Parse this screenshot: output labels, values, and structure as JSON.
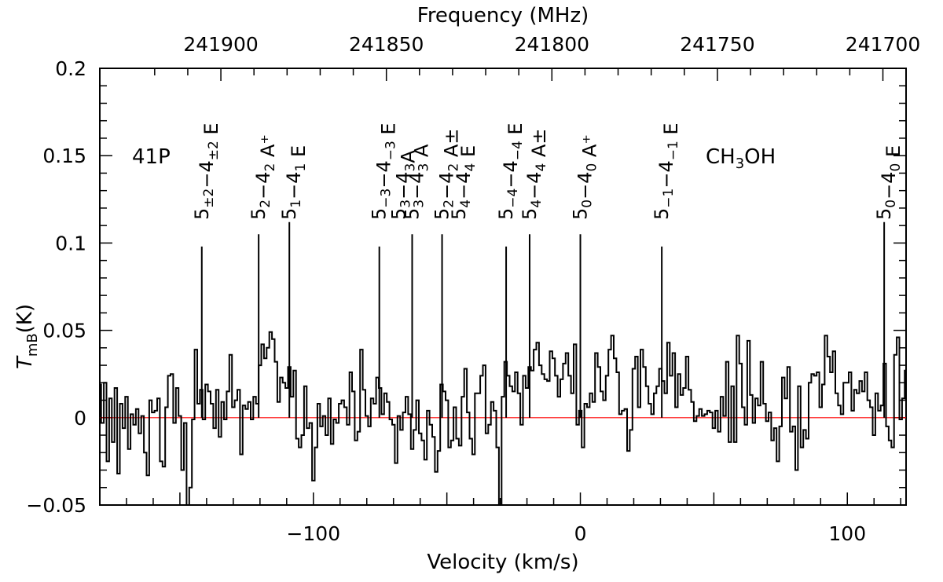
{
  "chart_data": {
    "type": "line",
    "style": "histogram-step",
    "annotations": {
      "object": "41P",
      "molecule": "CH3OH"
    },
    "x_axis": {
      "label": "Velocity (km/s)",
      "range": [
        -180,
        122
      ],
      "tick_values": [
        -100,
        0,
        100
      ],
      "tick_labels": [
        "−100",
        "0",
        "100"
      ]
    },
    "top_axis": {
      "label": "Frequency (MHz)",
      "tick_values": [
        241900,
        241850,
        241800,
        241750,
        241700
      ],
      "tick_labels": [
        "241900",
        "241850",
        "241800",
        "241750",
        "241700"
      ],
      "rest_frequency_mhz": 241791.4
    },
    "y_axis": {
      "label_main": "T",
      "label_sub": "mB",
      "label_unit": "(K)",
      "range": [
        -0.05,
        0.2
      ],
      "tick_values": [
        -0.05,
        0,
        0.05,
        0.1,
        0.15,
        0.2
      ],
      "tick_labels": [
        "−0.05",
        "0",
        "0.05",
        "0.1",
        "0.15",
        "0.2"
      ]
    },
    "baseline": {
      "value": 0,
      "color": "#ff0000"
    },
    "spectrum": {
      "x_start": -180,
      "x_step": 1,
      "values": [
        0.019,
        -0.003,
        0.02,
        -0.025,
        0.011,
        -0.014,
        0.017,
        -0.032,
        0.008,
        -0.006,
        0.012,
        -0.018,
        0.002,
        -0.004,
        0.005,
        -0.009,
        0.001,
        -0.02,
        -0.033,
        0.01,
        0.003,
        0.004,
        0.011,
        -0.025,
        -0.028,
        0.006,
        0.024,
        0.025,
        -0.003,
        0.017,
        0.001,
        -0.03,
        -0.003,
        -0.05,
        -0.04,
        -0.001,
        0.039,
        0.008,
        0.016,
        -0.001,
        0.019,
        0.015,
        0.008,
        -0.006,
        0.016,
        -0.011,
        0.009,
        -0.001,
        0.015,
        0.036,
        0.006,
        0.01,
        0.016,
        -0.021,
        0.007,
        0.005,
        0.009,
        -0.001,
        0.012,
        0.008,
        0.03,
        0.042,
        0.034,
        0.04,
        0.049,
        0.045,
        0.032,
        0.009,
        0.023,
        0.02,
        0.017,
        0.029,
        0.012,
        0.027,
        -0.012,
        -0.017,
        -0.01,
        0.018,
        -0.006,
        -0.003,
        -0.036,
        -0.017,
        0.008,
        -0.005,
        0.001,
        -0.01,
        0.011,
        -0.015,
        -0.001,
        -0.003,
        0.008,
        0.01,
        0.006,
        -0.004,
        0.026,
        0.015,
        -0.013,
        -0.008,
        0.039,
        0.016,
        0.001,
        -0.005,
        0.011,
        0.008,
        0.023,
        0.017,
        0.002,
        0.014,
        0.009,
        -0.001,
        -0.004,
        -0.026,
        0.001,
        -0.007,
        0.003,
        0.012,
        0.002,
        -0.018,
        -0.007,
        0.01,
        -0.009,
        -0.013,
        -0.024,
        0.004,
        -0.004,
        -0.011,
        -0.031,
        -0.019,
        0.019,
        0.015,
        0.01,
        -0.017,
        -0.013,
        0.006,
        -0.012,
        -0.016,
        0.012,
        0.028,
        0.003,
        -0.012,
        -0.021,
        0.014,
        0.014,
        0.024,
        0.03,
        -0.009,
        -0.004,
        0.009,
        0.004,
        -0.017,
        -0.05,
        0.012,
        0.032,
        0.024,
        0.018,
        0.015,
        0.026,
        0.014,
        -0.004,
        0.024,
        0.017,
        0.029,
        0.027,
        0.039,
        0.043,
        0.03,
        0.025,
        0.022,
        0.021,
        0.038,
        0.034,
        0.024,
        0.012,
        0.022,
        0.031,
        0.037,
        0.024,
        0.014,
        0.042,
        -0.004,
        0.004,
        -0.017,
        0.008,
        0.006,
        0.014,
        0.009,
        0.037,
        0.029,
        0.015,
        0.01,
        0.024,
        0.039,
        0.047,
        0.034,
        0.026,
        0.002,
        0.004,
        0.005,
        -0.019,
        -0.007,
        0.028,
        0.035,
        0.006,
        0.039,
        0.029,
        0.018,
        0.008,
        0.002,
        0.014,
        0.018,
        0.028,
        0.021,
        0.014,
        0.043,
        0.024,
        0.037,
        0.006,
        0.025,
        0.013,
        0.017,
        0.035,
        0.016,
        0.009,
        -0.002,
        0.001,
        0.005,
        0.001,
        0.002,
        0.004,
        0.003,
        -0.006,
        0.004,
        -0.008,
        0.012,
        0.001,
        0.032,
        -0.014,
        0.018,
        -0.014,
        0.047,
        0.031,
        0.006,
        -0.004,
        0.044,
        0.013,
        -0.003,
        0.011,
        0.007,
        0.032,
        0.008,
        -0.002,
        0.003,
        -0.013,
        -0.006,
        -0.025,
        -0.005,
        0.023,
        0.011,
        0.029,
        -0.008,
        -0.005,
        -0.03,
        0.018,
        -0.017,
        -0.007,
        -0.012,
        0.02,
        0.025,
        0.024,
        0.026,
        0.006,
        0.019,
        0.047,
        0.035,
        0.026,
        0.038,
        0.014,
        0.007,
        0.002,
        0.02,
        0.02,
        0.026,
        0.004,
        0.016,
        0.014,
        0.021,
        0.015,
        0.026,
        0.01,
        0.006,
        -0.01,
        0.014,
        0.004,
        0.007,
        0.031,
        -0.005,
        -0.013,
        -0.017,
        0.036,
        0.046,
        -0.001,
        0.011,
        0.027,
        -0.001,
        0.005,
        -0.026,
        -0.035,
        -0.032,
        0.022,
        0.004,
        0.011,
        0.024
      ]
    },
    "transitions": [
      {
        "velocity": -141.8,
        "height": 0.098,
        "label": [
          "5",
          "±2",
          "−4",
          "±2",
          " E"
        ]
      },
      {
        "velocity": -120.5,
        "height": 0.105,
        "label": [
          "5",
          "2",
          "−4",
          "2",
          " A⁺"
        ]
      },
      {
        "velocity": -109.0,
        "height": 0.112,
        "label": [
          "5",
          "1",
          "−4",
          "1",
          " E"
        ]
      },
      {
        "velocity": -75.3,
        "height": 0.098,
        "label": [
          "5",
          "−3",
          "−4",
          "−3",
          " E"
        ]
      },
      {
        "velocity": -63.0,
        "height": 0.105,
        "label": [
          "5",
          "3",
          "−4",
          "3",
          " A"
        ]
      },
      {
        "velocity": -51.8,
        "height": 0.105,
        "label": [
          "5",
          "2",
          "−4",
          "2",
          " A±"
        ]
      },
      {
        "velocity": -27.8,
        "height": 0.098,
        "label": [
          "5",
          "−4",
          "−4",
          "−4",
          " E"
        ]
      },
      {
        "velocity": -19.0,
        "height": 0.105,
        "label": [
          "5",
          "4",
          "−4",
          "4",
          " A±"
        ]
      },
      {
        "velocity": 0.0,
        "height": 0.105,
        "label": [
          "5",
          "0",
          "−4",
          "0",
          " A⁺"
        ]
      },
      {
        "velocity": 30.5,
        "height": 0.098,
        "label": [
          "5",
          "−1",
          "−4",
          "−1",
          " E"
        ]
      },
      {
        "velocity": 113.8,
        "height": 0.112,
        "label": [
          "5",
          "0",
          "−4",
          "0",
          " E"
        ]
      }
    ],
    "stacked_labels": [
      {
        "velocity": -68.0,
        "label": [
          "5",
          "3",
          "−4",
          "3",
          "A"
        ]
      },
      {
        "velocity": -45.5,
        "label": [
          "5",
          "4",
          "−4",
          "4",
          " E"
        ]
      }
    ]
  }
}
